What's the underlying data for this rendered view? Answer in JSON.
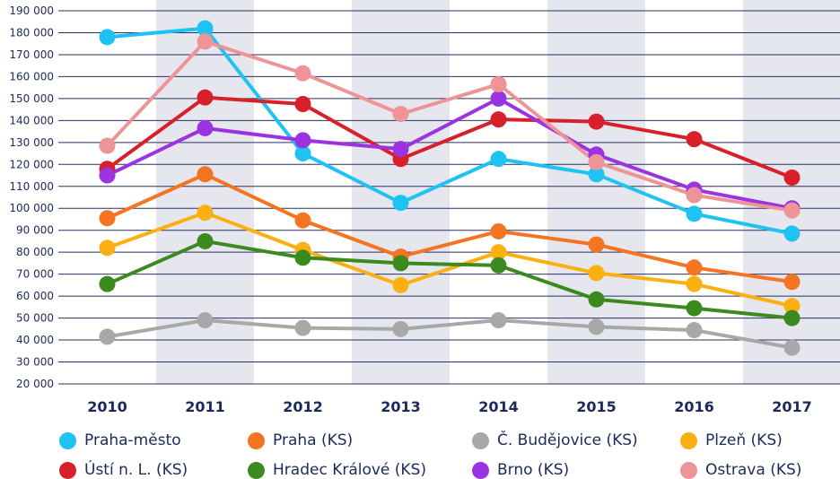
{
  "chart_data": {
    "type": "line",
    "title": "",
    "xlabel": "",
    "ylabel": "",
    "categories": [
      "2010",
      "2011",
      "2012",
      "2013",
      "2014",
      "2015",
      "2016",
      "2017"
    ],
    "ylim": [
      20000,
      190000
    ],
    "yticks": [
      190000,
      180000,
      170000,
      160000,
      150000,
      140000,
      130000,
      120000,
      110000,
      100000,
      90000,
      80000,
      70000,
      60000,
      50000,
      40000,
      30000,
      20000
    ],
    "ytick_labels": [
      "190 000",
      "180 000",
      "170 000",
      "160 000",
      "150 000",
      "140 000",
      "130 000",
      "120 000",
      "110 000",
      "100 000",
      "90 000",
      "80 000",
      "70 000",
      "60 000",
      "50 000",
      "40 000",
      "30 000",
      "20 000"
    ],
    "grid": true,
    "legend_position": "bottom",
    "series": [
      {
        "name": "Praha-město",
        "color": "#1ec3f3",
        "values": [
          178000,
          182000,
          125000,
          102500,
          122500,
          115500,
          97500,
          88500
        ]
      },
      {
        "name": "Praha (KS)",
        "color": "#f47421",
        "values": [
          95500,
          115500,
          94500,
          78000,
          89500,
          83500,
          73000,
          66500
        ]
      },
      {
        "name": "Č. Budějovice (KS)",
        "color": "#a8a8a8",
        "values": [
          41500,
          49000,
          45500,
          45000,
          49000,
          46000,
          44500,
          36500
        ]
      },
      {
        "name": "Plzeň (KS)",
        "color": "#fbb012",
        "values": [
          82000,
          98000,
          81000,
          65000,
          80000,
          70500,
          65500,
          55500
        ]
      },
      {
        "name": "Ústí n. L. (KS)",
        "color": "#d8202a",
        "values": [
          118000,
          150500,
          147500,
          122500,
          140500,
          139500,
          131500,
          114000
        ]
      },
      {
        "name": "Hradec Králové (KS)",
        "color": "#3a8a1f",
        "values": [
          65500,
          85000,
          77500,
          75000,
          74000,
          58500,
          54500,
          50000
        ]
      },
      {
        "name": "Brno (KS)",
        "color": "#9b34e0",
        "values": [
          115000,
          136500,
          131000,
          127000,
          150000,
          124500,
          108500,
          100000
        ]
      },
      {
        "name": "Ostrava (KS)",
        "color": "#ee9498",
        "values": [
          128500,
          176000,
          161500,
          143000,
          156500,
          121000,
          106000,
          99000
        ]
      }
    ]
  }
}
